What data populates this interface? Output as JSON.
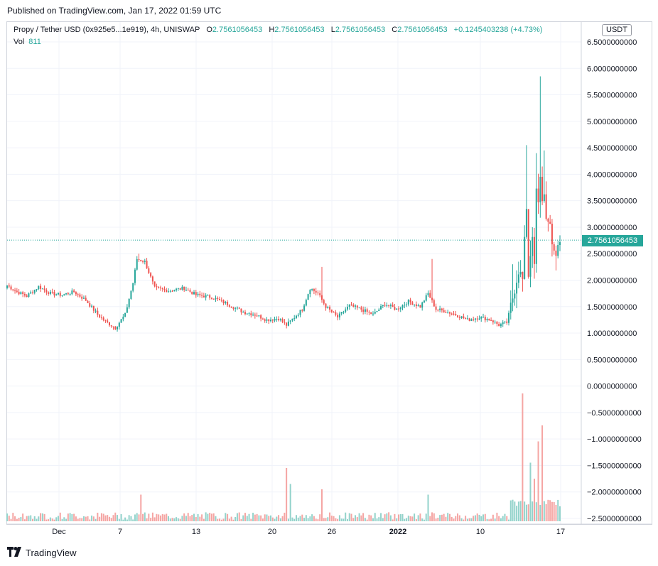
{
  "header": {
    "published": "Published on TradingView.com, Jan 17, 2022 01:59 UTC"
  },
  "legend": {
    "symbol": "Propy / Tether USD (0x925e5...1e919), 4h, UNISWAP",
    "o_label": "O",
    "o_value": "2.7561056453",
    "h_label": "H",
    "h_value": "2.7561056453",
    "l_label": "L",
    "l_value": "2.7561056453",
    "c_label": "C",
    "c_value": "2.7561056453",
    "change": "+0.1245403238 (+4.73%)",
    "vol_label": "Vol",
    "vol_value": "811"
  },
  "currency_badge": "USDT",
  "last_price_label": "2.7561056453",
  "footer": {
    "brand": "TradingView"
  },
  "colors": {
    "up": "#26a69a",
    "down": "#ef5350",
    "up_vol": "#93d3cb",
    "down_vol": "#f5a5a3",
    "grid": "#f0f3fa"
  },
  "chart_data": {
    "type": "candlestick",
    "ylim": [
      -2.5,
      6.5
    ],
    "y_ticks": [
      "6.5000000000",
      "6.0000000000",
      "5.5000000000",
      "5.0000000000",
      "4.5000000000",
      "4.0000000000",
      "3.5000000000",
      "3.0000000000",
      "2.5000000000",
      "2.0000000000",
      "1.5000000000",
      "1.0000000000",
      "0.5000000000",
      "0.0000000000",
      "−0.5000000000",
      "−1.0000000000",
      "−1.5000000000",
      "−2.0000000000",
      "−2.5000000000"
    ],
    "y_tick_values": [
      6.5,
      6.0,
      5.5,
      5.0,
      4.5,
      4.0,
      3.5,
      3.0,
      2.5,
      2.0,
      1.5,
      1.0,
      0.5,
      0.0,
      -0.5,
      -1.0,
      -1.5,
      -2.0,
      -2.5
    ],
    "x_ticks": [
      "Dec",
      "7",
      "13",
      "20",
      "26",
      "2022",
      "10",
      "17"
    ],
    "last_price": 2.7561056453,
    "price_anchors": [
      [
        0,
        1.9
      ],
      [
        5,
        1.78
      ],
      [
        10,
        1.7
      ],
      [
        16,
        1.88
      ],
      [
        22,
        1.75
      ],
      [
        28,
        1.72
      ],
      [
        34,
        1.78
      ],
      [
        40,
        1.62
      ],
      [
        46,
        1.35
      ],
      [
        50,
        1.22
      ],
      [
        55,
        1.1
      ],
      [
        60,
        1.35
      ],
      [
        64,
        1.95
      ],
      [
        66,
        2.4
      ],
      [
        70,
        2.35
      ],
      [
        75,
        1.85
      ],
      [
        82,
        1.8
      ],
      [
        90,
        1.85
      ],
      [
        96,
        1.72
      ],
      [
        104,
        1.68
      ],
      [
        112,
        1.55
      ],
      [
        120,
        1.4
      ],
      [
        126,
        1.35
      ],
      [
        132,
        1.25
      ],
      [
        138,
        1.28
      ],
      [
        142,
        1.15
      ],
      [
        146,
        1.3
      ],
      [
        150,
        1.45
      ],
      [
        154,
        1.85
      ],
      [
        158,
        1.75
      ],
      [
        162,
        1.5
      ],
      [
        168,
        1.3
      ],
      [
        174,
        1.52
      ],
      [
        180,
        1.45
      ],
      [
        186,
        1.35
      ],
      [
        192,
        1.55
      ],
      [
        198,
        1.45
      ],
      [
        204,
        1.6
      ],
      [
        210,
        1.5
      ],
      [
        214,
        1.75
      ],
      [
        218,
        1.45
      ],
      [
        222,
        1.42
      ],
      [
        228,
        1.35
      ],
      [
        234,
        1.25
      ],
      [
        240,
        1.3
      ],
      [
        246,
        1.25
      ],
      [
        250,
        1.15
      ],
      [
        254,
        1.2
      ],
      [
        256,
        1.5
      ],
      [
        258,
        1.85
      ],
      [
        260,
        2.2
      ],
      [
        262,
        2.0
      ],
      [
        264,
        3.4
      ],
      [
        265,
        2.1
      ],
      [
        266,
        2.5
      ],
      [
        267,
        2.9
      ],
      [
        268,
        2.2
      ],
      [
        269,
        3.7
      ],
      [
        270,
        3.4
      ],
      [
        271,
        3.9
      ],
      [
        272,
        3.55
      ],
      [
        273,
        3.6
      ],
      [
        274,
        3.25
      ],
      [
        275,
        3.05
      ],
      [
        276,
        2.95
      ],
      [
        277,
        2.65
      ],
      [
        278,
        2.6
      ],
      [
        279,
        2.5
      ],
      [
        280,
        2.65
      ],
      [
        281,
        2.7
      ]
    ],
    "wick_peaks": [
      [
        264,
        4.55
      ],
      [
        269,
        4.4
      ],
      [
        271,
        5.85
      ],
      [
        273,
        4.45
      ],
      [
        257,
        2.3
      ],
      [
        265,
        3.2
      ],
      [
        216,
        2.4
      ],
      [
        160,
        2.25
      ],
      [
        67,
        2.5
      ]
    ],
    "volume_spikes": [
      [
        262,
        24.0
      ],
      [
        266,
        11.0
      ],
      [
        268,
        8.0
      ],
      [
        270,
        15.0
      ],
      [
        272,
        18.0
      ],
      [
        142,
        10.0
      ],
      [
        144,
        7.0
      ],
      [
        160,
        6.0
      ],
      [
        214,
        5.0
      ],
      [
        68,
        5.0
      ]
    ]
  }
}
